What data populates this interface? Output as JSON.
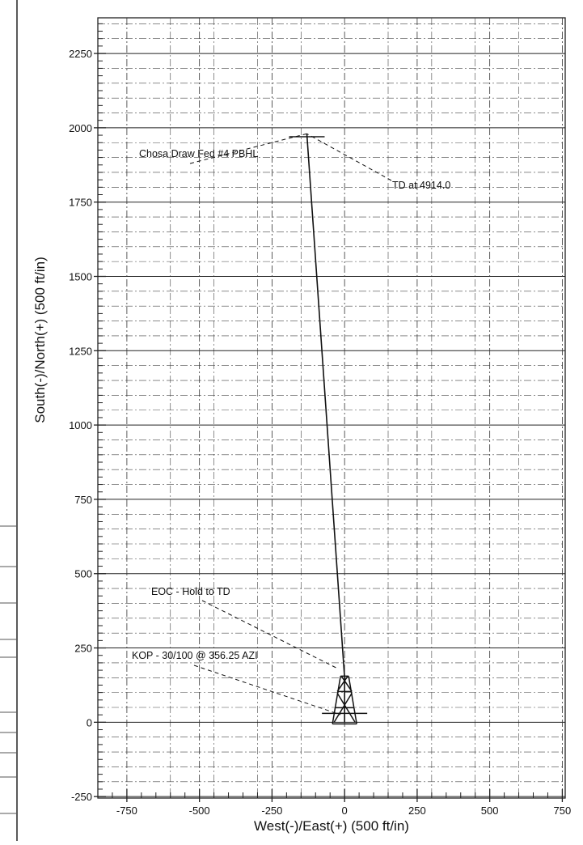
{
  "chart_data": {
    "type": "line",
    "title": "",
    "xlabel": "West(-)/East(+) (500 ft/in)",
    "ylabel": "South(-)/North(+) (500 ft/in)",
    "xlim": [
      -850,
      760
    ],
    "ylim": [
      -255,
      2370
    ],
    "xticks": [
      -750,
      -500,
      -250,
      0,
      250,
      500,
      750
    ],
    "yticks": [
      -250,
      0,
      250,
      500,
      750,
      1000,
      1250,
      1500,
      1750,
      2000,
      2250
    ],
    "grid": true,
    "series": [
      {
        "x": [
          0,
          0,
          -130
        ],
        "y": [
          0,
          150,
          1980
        ]
      }
    ],
    "annotations": [
      {
        "text": "Chosa Draw Fed #4 PBHL",
        "point": [
          -130,
          1980
        ]
      },
      {
        "text": "TD at 4914.0",
        "point": [
          -130,
          1980
        ]
      },
      {
        "text": "EOC - Hold to TD",
        "point": [
          0,
          180
        ]
      },
      {
        "text": "KOP - 30/100 @ 356.25 AZI",
        "point": [
          0,
          20
        ]
      }
    ]
  }
}
